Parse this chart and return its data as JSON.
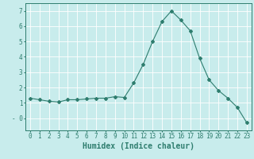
{
  "x": [
    0,
    1,
    2,
    3,
    4,
    5,
    6,
    7,
    8,
    9,
    10,
    11,
    12,
    13,
    14,
    15,
    16,
    17,
    18,
    19,
    20,
    21,
    22,
    23
  ],
  "y": [
    1.3,
    1.2,
    1.1,
    1.05,
    1.2,
    1.2,
    1.25,
    1.3,
    1.3,
    1.4,
    1.35,
    2.3,
    3.5,
    5.0,
    6.3,
    7.0,
    6.4,
    5.7,
    3.9,
    2.5,
    1.8,
    1.3,
    0.7,
    -0.3
  ],
  "line_color": "#2e7d6e",
  "marker": "D",
  "marker_size": 2.0,
  "bg_color": "#c8ecec",
  "grid_color": "#ffffff",
  "xlabel": "Humidex (Indice chaleur)",
  "xlabel_fontsize": 7,
  "tick_fontsize": 5.5,
  "ylim": [
    -0.8,
    7.5
  ],
  "xlim": [
    -0.5,
    23.5
  ],
  "yticks": [
    0,
    1,
    2,
    3,
    4,
    5,
    6,
    7
  ],
  "ytick_labels": [
    "- 0",
    "1",
    "2",
    "3",
    "4",
    "5",
    "6",
    "7"
  ]
}
